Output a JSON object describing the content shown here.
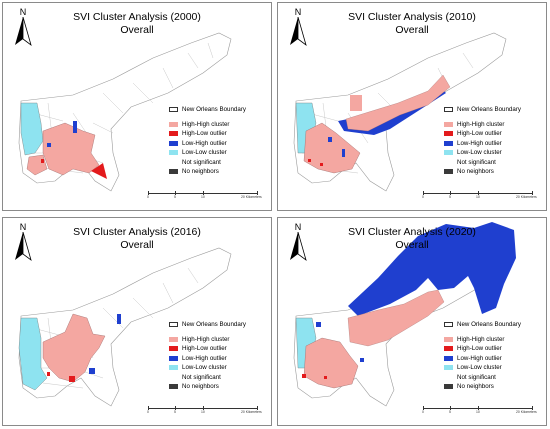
{
  "legend_items": [
    {
      "label": "New Orleans Boundary",
      "color": "#ffffff"
    },
    {
      "label": "High-High cluster",
      "color": "#f4a7a1"
    },
    {
      "label": "High-Low outlier",
      "color": "#e31a1c"
    },
    {
      "label": "Low-High outlier",
      "color": "#1f3fcf"
    },
    {
      "label": "Low-Low cluster",
      "color": "#8ee3f0"
    },
    {
      "label": "Not significant",
      "color": ""
    },
    {
      "label": "No neighbors",
      "color": "#3a3a3a"
    }
  ],
  "north_label": "N",
  "scale_labels": [
    "0",
    "5",
    "10",
    "20 Kilometers"
  ],
  "panels": [
    {
      "title_line1": "SVI Cluster Analysis (2000)",
      "title_line2": "Overall"
    },
    {
      "title_line1": "SVI Cluster Analysis (2010)",
      "title_line2": "Overall"
    },
    {
      "title_line1": "SVI Cluster Analysis (2016)",
      "title_line2": "Overall"
    },
    {
      "title_line1": "SVI Cluster Analysis (2020)",
      "title_line2": "Overall"
    }
  ]
}
